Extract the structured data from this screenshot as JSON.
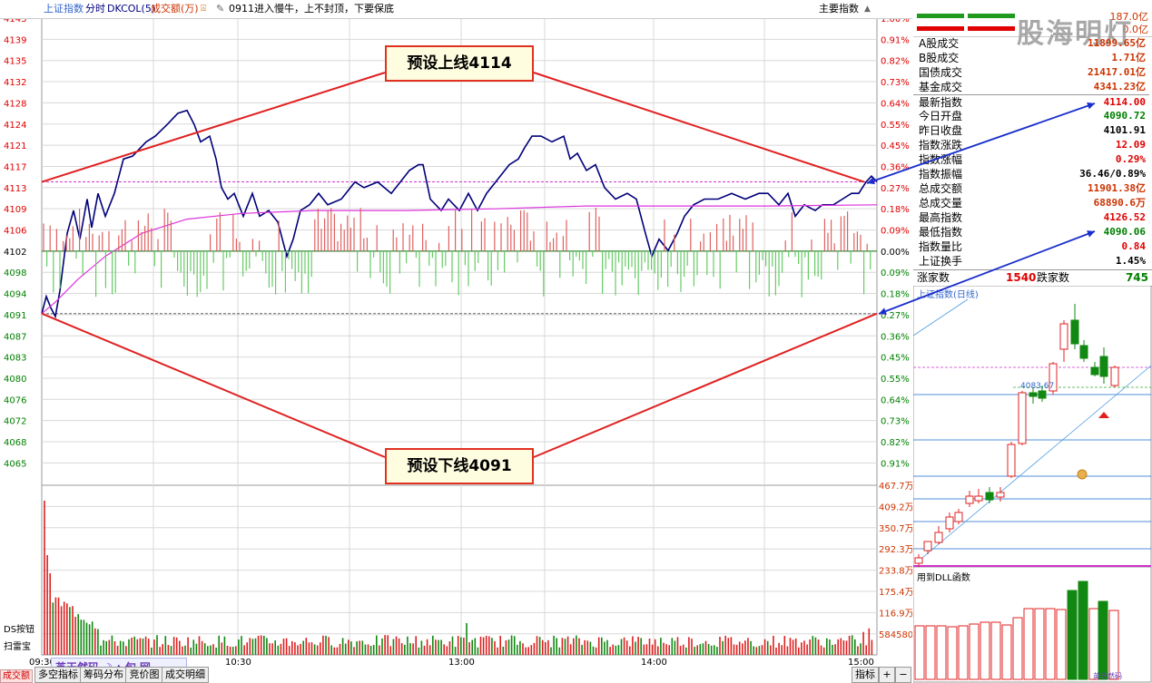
{
  "header": {
    "index_name": "上证指数",
    "mode": "分时",
    "indicator": "DKCOL(5)",
    "volume_label": "成交额(万)",
    "news": "0911进入慢牛，上不封顶，下要保底",
    "right_title": "主要指数"
  },
  "price_axis": {
    "left": [
      "4143",
      "4139",
      "4135",
      "4132",
      "4128",
      "4124",
      "4121",
      "4117",
      "4113",
      "4109",
      "4106",
      "4102",
      "4098",
      "4094",
      "4091",
      "4087",
      "4083",
      "4080",
      "4076",
      "4072",
      "4068",
      "4065"
    ],
    "right": [
      "1.00%",
      "0.91%",
      "0.82%",
      "0.73%",
      "0.64%",
      "0.55%",
      "0.45%",
      "0.36%",
      "0.27%",
      "0.18%",
      "0.09%",
      "0.00%",
      "0.09%",
      "0.18%",
      "0.27%",
      "0.36%",
      "0.45%",
      "0.55%",
      "0.64%",
      "0.73%",
      "0.82%",
      "0.91%"
    ]
  },
  "volume_axis": {
    "right": [
      "467.7万",
      "409.2万",
      "350.7万",
      "292.3万",
      "233.8万",
      "175.4万",
      "116.9万",
      "584580"
    ],
    "tag": "成交额"
  },
  "time_axis": [
    "09:30",
    "10:30",
    "13:00",
    "14:00",
    "15:00"
  ],
  "annotations": {
    "upper": "预设上线4114",
    "lower": "预设下线4091"
  },
  "left_buttons": [
    "DS按钮",
    "扫雷宝"
  ],
  "bottom_tabs": [
    "多空指标",
    "筹码分布",
    "竞价图",
    "成交明细"
  ],
  "bottom_right": {
    "indicator_button": "指标",
    "plus": "+",
    "minus": "−"
  },
  "watermark": "英天然码",
  "quote": {
    "logo_text": "股海明灯",
    "top_values": [
      "187.0亿",
      "0.0亿"
    ],
    "rows": [
      {
        "label": "A股成交",
        "value": "11899.65亿",
        "color": "#cc3300"
      },
      {
        "label": "B股成交",
        "value": "1.71亿",
        "color": "#cc3300"
      },
      {
        "label": "国债成交",
        "value": "21417.01亿",
        "color": "#cc3300"
      },
      {
        "label": "基金成交",
        "value": "4341.23亿",
        "color": "#cc3300"
      },
      {
        "label": "最新指数",
        "value": "4114.00",
        "color": "#e00000"
      },
      {
        "label": "今日开盘",
        "value": "4090.72",
        "color": "#008000"
      },
      {
        "label": "昨日收盘",
        "value": "4101.91",
        "color": "#000000"
      },
      {
        "label": "指数涨跌",
        "value": "12.09",
        "color": "#e00000"
      },
      {
        "label": "指数涨幅",
        "value": "0.29%",
        "color": "#e00000"
      },
      {
        "label": "指数振幅",
        "value": "36.46/0.89%",
        "color": "#000000"
      },
      {
        "label": "总成交额",
        "value": "11901.38亿",
        "color": "#cc3300"
      },
      {
        "label": "总成交量",
        "value": "68890.6万",
        "color": "#cc3300"
      },
      {
        "label": "最高指数",
        "value": "4126.52",
        "color": "#e00000"
      },
      {
        "label": "最低指数",
        "value": "4090.06",
        "color": "#008000"
      },
      {
        "label": "指数量比",
        "value": "0.84",
        "color": "#e00000"
      },
      {
        "label": "上证换手",
        "value": "1.45%",
        "color": "#000000"
      }
    ],
    "up_label": "涨家数",
    "up_count": "1540",
    "down_label": "跌家数",
    "down_count": "745"
  },
  "kline": {
    "title": "上证指数(日线)",
    "price_label": "4083.67",
    "sub_title": "用到DLL函数"
  }
}
